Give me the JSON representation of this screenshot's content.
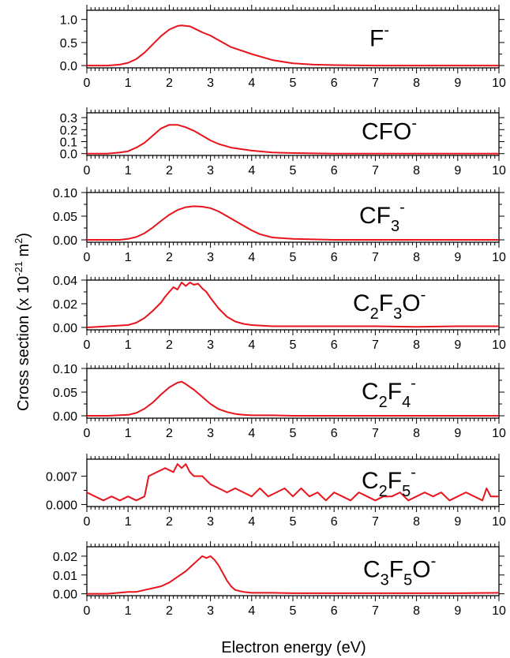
{
  "figure": {
    "ylabel": "Cross section (x 10",
    "ylabel_sup1": "-21",
    "ylabel_mid": " m",
    "ylabel_sup2": "2",
    "ylabel_end": ")",
    "xlabel": "Electron energy (eV)",
    "line_color": "#e8141c"
  },
  "chart_data": [
    {
      "type": "line",
      "ion_label": {
        "parts": [
          {
            "t": "F",
            "p": "n"
          },
          {
            "t": "-",
            "p": "sup"
          }
        ]
      },
      "xlim": [
        0,
        10
      ],
      "ylim": [
        -0.05,
        1.2
      ],
      "yticks": [
        "1.0",
        "0.5",
        "0.0"
      ],
      "ytick_values": [
        1.0,
        0.5,
        0.0
      ],
      "xticks": [
        "0",
        "1",
        "2",
        "3",
        "4",
        "5",
        "6",
        "7",
        "8",
        "9",
        "10"
      ],
      "series": [
        {
          "x": [
            0,
            0.5,
            0.8,
            1.0,
            1.2,
            1.4,
            1.6,
            1.8,
            2.0,
            2.2,
            2.3,
            2.5,
            2.6,
            2.8,
            3.0,
            3.2,
            3.5,
            4.0,
            4.5,
            5.0,
            5.5,
            6.0,
            7.0,
            8.0,
            9.0,
            10.0
          ],
          "y": [
            0,
            0,
            0.02,
            0.06,
            0.14,
            0.28,
            0.46,
            0.64,
            0.78,
            0.86,
            0.87,
            0.85,
            0.81,
            0.72,
            0.65,
            0.55,
            0.4,
            0.25,
            0.12,
            0.05,
            0.02,
            0.01,
            0,
            0,
            0,
            0
          ]
        }
      ]
    },
    {
      "type": "line",
      "ion_label": {
        "parts": [
          {
            "t": "CFO",
            "p": "n"
          },
          {
            "t": "-",
            "p": "sup"
          }
        ]
      },
      "xlim": [
        0,
        10
      ],
      "ylim": [
        -0.015,
        0.34
      ],
      "yticks": [
        "0.3",
        "0.2",
        "0.1",
        "0.0"
      ],
      "ytick_values": [
        0.3,
        0.2,
        0.1,
        0.0
      ],
      "xticks": [
        "0",
        "1",
        "2",
        "3",
        "4",
        "5",
        "6",
        "7",
        "8",
        "9",
        "10"
      ],
      "series": [
        {
          "x": [
            0,
            0.5,
            0.8,
            1.0,
            1.2,
            1.4,
            1.6,
            1.8,
            2.0,
            2.2,
            2.4,
            2.6,
            2.8,
            3.0,
            3.2,
            3.5,
            4.0,
            4.5,
            5.0,
            5.5,
            6.0,
            7.0,
            8.0,
            9.0,
            10.0
          ],
          "y": [
            0,
            0,
            0.01,
            0.02,
            0.05,
            0.09,
            0.15,
            0.21,
            0.24,
            0.24,
            0.22,
            0.19,
            0.15,
            0.11,
            0.08,
            0.05,
            0.025,
            0.01,
            0.005,
            0.002,
            0,
            0,
            0,
            0,
            0
          ]
        }
      ]
    },
    {
      "type": "line",
      "ion_label": {
        "parts": [
          {
            "t": "CF",
            "p": "n"
          },
          {
            "t": "3",
            "p": "sub"
          },
          {
            "t": "-",
            "p": "sup"
          }
        ]
      },
      "xlim": [
        0,
        10
      ],
      "ylim": [
        -0.005,
        0.1
      ],
      "yticks": [
        "0.10",
        "0.05",
        "0.00"
      ],
      "ytick_values": [
        0.1,
        0.05,
        0.0
      ],
      "xticks": [
        "0",
        "1",
        "2",
        "3",
        "4",
        "5",
        "6",
        "7",
        "8",
        "9",
        "10"
      ],
      "series": [
        {
          "x": [
            0,
            0.8,
            1.0,
            1.2,
            1.4,
            1.6,
            1.8,
            2.0,
            2.2,
            2.4,
            2.6,
            2.8,
            3.0,
            3.2,
            3.4,
            3.6,
            3.8,
            4.0,
            4.2,
            4.5,
            5.0,
            5.5,
            6.0,
            7.0,
            8.0,
            9.0,
            10.0
          ],
          "y": [
            0,
            0,
            0.002,
            0.006,
            0.014,
            0.026,
            0.04,
            0.053,
            0.063,
            0.069,
            0.071,
            0.07,
            0.067,
            0.06,
            0.05,
            0.04,
            0.03,
            0.02,
            0.012,
            0.005,
            0.002,
            0.001,
            0,
            0,
            0,
            0,
            0
          ]
        }
      ]
    },
    {
      "type": "line",
      "ion_label": {
        "parts": [
          {
            "t": "C",
            "p": "n"
          },
          {
            "t": "2",
            "p": "sub"
          },
          {
            "t": "F",
            "p": "n"
          },
          {
            "t": "3",
            "p": "sub"
          },
          {
            "t": "O",
            "p": "n"
          },
          {
            "t": "-",
            "p": "sup"
          }
        ]
      },
      "xlim": [
        0,
        10
      ],
      "ylim": [
        -0.002,
        0.04
      ],
      "yticks": [
        "0.04",
        "0.02",
        "0.00"
      ],
      "ytick_values": [
        0.04,
        0.02,
        0.0
      ],
      "xticks": [
        "0",
        "1",
        "2",
        "3",
        "4",
        "5",
        "6",
        "7",
        "8",
        "9",
        "10"
      ],
      "series": [
        {
          "x": [
            0,
            0.5,
            1.0,
            1.2,
            1.4,
            1.6,
            1.8,
            1.9,
            2.0,
            2.1,
            2.2,
            2.3,
            2.4,
            2.5,
            2.6,
            2.7,
            2.8,
            2.9,
            3.0,
            3.2,
            3.4,
            3.6,
            3.8,
            4.0,
            4.5,
            5.0,
            6.0,
            7.0,
            8.0,
            9.0,
            10.0
          ],
          "y": [
            0,
            0.001,
            0.002,
            0.004,
            0.008,
            0.014,
            0.021,
            0.026,
            0.03,
            0.034,
            0.032,
            0.038,
            0.035,
            0.038,
            0.036,
            0.037,
            0.033,
            0.03,
            0.025,
            0.016,
            0.009,
            0.005,
            0.003,
            0.002,
            0.001,
            0.001,
            0.001,
            0.001,
            0.0005,
            0.001,
            0.001
          ]
        }
      ]
    },
    {
      "type": "line",
      "ion_label": {
        "parts": [
          {
            "t": "C",
            "p": "n"
          },
          {
            "t": "2",
            "p": "sub"
          },
          {
            "t": "F",
            "p": "n"
          },
          {
            "t": "4",
            "p": "sub"
          },
          {
            "t": "-",
            "p": "sup"
          }
        ]
      },
      "xlim": [
        0,
        10
      ],
      "ylim": [
        -0.005,
        0.1
      ],
      "yticks": [
        "0.10",
        "0.05",
        "0.00"
      ],
      "ytick_values": [
        0.1,
        0.05,
        0.0
      ],
      "xticks": [
        "0",
        "1",
        "2",
        "3",
        "4",
        "5",
        "6",
        "7",
        "8",
        "9",
        "10"
      ],
      "series": [
        {
          "x": [
            0,
            0.5,
            1.0,
            1.2,
            1.4,
            1.6,
            1.8,
            2.0,
            2.2,
            2.3,
            2.4,
            2.6,
            2.8,
            3.0,
            3.2,
            3.4,
            3.6,
            3.8,
            4.0,
            4.5,
            5.0,
            6.0,
            7.0,
            8.0,
            9.0,
            10.0
          ],
          "y": [
            0,
            0,
            0.002,
            0.006,
            0.015,
            0.028,
            0.045,
            0.06,
            0.07,
            0.072,
            0.067,
            0.055,
            0.04,
            0.025,
            0.014,
            0.008,
            0.004,
            0.002,
            0.001,
            0.001,
            0,
            0,
            0,
            0,
            0,
            0
          ]
        }
      ]
    },
    {
      "type": "line",
      "ion_label": {
        "parts": [
          {
            "t": "C",
            "p": "n"
          },
          {
            "t": "2",
            "p": "sub"
          },
          {
            "t": "F",
            "p": "n"
          },
          {
            "t": "5",
            "p": "sub"
          },
          {
            "t": "-",
            "p": "sup"
          }
        ]
      },
      "xlim": [
        0,
        10
      ],
      "ylim": [
        -0.0005,
        0.0112
      ],
      "yticks": [
        "0.007",
        "0.000"
      ],
      "ytick_values": [
        0.007,
        0.0
      ],
      "xticks": [
        "0",
        "1",
        "2",
        "3",
        "4",
        "5",
        "6",
        "7",
        "8",
        "9",
        "10"
      ],
      "series": [
        {
          "x": [
            0,
            0.2,
            0.4,
            0.6,
            0.8,
            1.0,
            1.2,
            1.4,
            1.5,
            1.7,
            1.9,
            2.1,
            2.2,
            2.3,
            2.4,
            2.5,
            2.6,
            2.8,
            3.0,
            3.2,
            3.4,
            3.6,
            3.8,
            4.0,
            4.2,
            4.4,
            4.6,
            4.8,
            5.0,
            5.2,
            5.4,
            5.6,
            5.8,
            6.0,
            6.2,
            6.4,
            6.6,
            6.8,
            7.0,
            7.2,
            7.4,
            7.6,
            7.8,
            8.0,
            8.2,
            8.4,
            8.6,
            8.8,
            9.0,
            9.2,
            9.4,
            9.6,
            9.7,
            9.8,
            10.0
          ],
          "y": [
            0.003,
            0.002,
            0.001,
            0.002,
            0.001,
            0.002,
            0.001,
            0.002,
            0.007,
            0.008,
            0.009,
            0.008,
            0.01,
            0.009,
            0.01,
            0.008,
            0.007,
            0.007,
            0.005,
            0.004,
            0.003,
            0.004,
            0.003,
            0.002,
            0.004,
            0.002,
            0.003,
            0.004,
            0.002,
            0.004,
            0.002,
            0.003,
            0.001,
            0.003,
            0.002,
            0.001,
            0.003,
            0.002,
            0.001,
            0.002,
            0.002,
            0.003,
            0.001,
            0.002,
            0.003,
            0.002,
            0.003,
            0.001,
            0.002,
            0.003,
            0.002,
            0.001,
            0.004,
            0.002,
            0.002
          ]
        }
      ]
    },
    {
      "type": "line",
      "ion_label": {
        "parts": [
          {
            "t": "C",
            "p": "n"
          },
          {
            "t": "3",
            "p": "sub"
          },
          {
            "t": "F",
            "p": "n"
          },
          {
            "t": "5",
            "p": "sub"
          },
          {
            "t": "O",
            "p": "n"
          },
          {
            "t": "-",
            "p": "sup"
          }
        ]
      },
      "xlim": [
        0,
        10
      ],
      "ylim": [
        -0.001,
        0.025
      ],
      "yticks": [
        "0.02",
        "0.01",
        "0.00"
      ],
      "ytick_values": [
        0.02,
        0.01,
        0.0
      ],
      "xticks": [
        "0",
        "1",
        "2",
        "3",
        "4",
        "5",
        "6",
        "7",
        "8",
        "9",
        "10"
      ],
      "series": [
        {
          "x": [
            0,
            0.5,
            1.0,
            1.2,
            1.4,
            1.6,
            1.8,
            2.0,
            2.2,
            2.4,
            2.6,
            2.7,
            2.8,
            2.9,
            3.0,
            3.1,
            3.2,
            3.3,
            3.4,
            3.5,
            3.6,
            3.8,
            4.0,
            4.5,
            5.0,
            6.0,
            7.0,
            8.0,
            9.0,
            10.0
          ],
          "y": [
            0,
            0,
            0.001,
            0.001,
            0.002,
            0.003,
            0.004,
            0.006,
            0.009,
            0.012,
            0.016,
            0.018,
            0.02,
            0.019,
            0.02,
            0.018,
            0.015,
            0.011,
            0.007,
            0.004,
            0.002,
            0.001,
            0.0005,
            0.0005,
            0.0003,
            0.0003,
            0.0003,
            0.0003,
            0.0003,
            0.0005
          ]
        }
      ]
    }
  ]
}
